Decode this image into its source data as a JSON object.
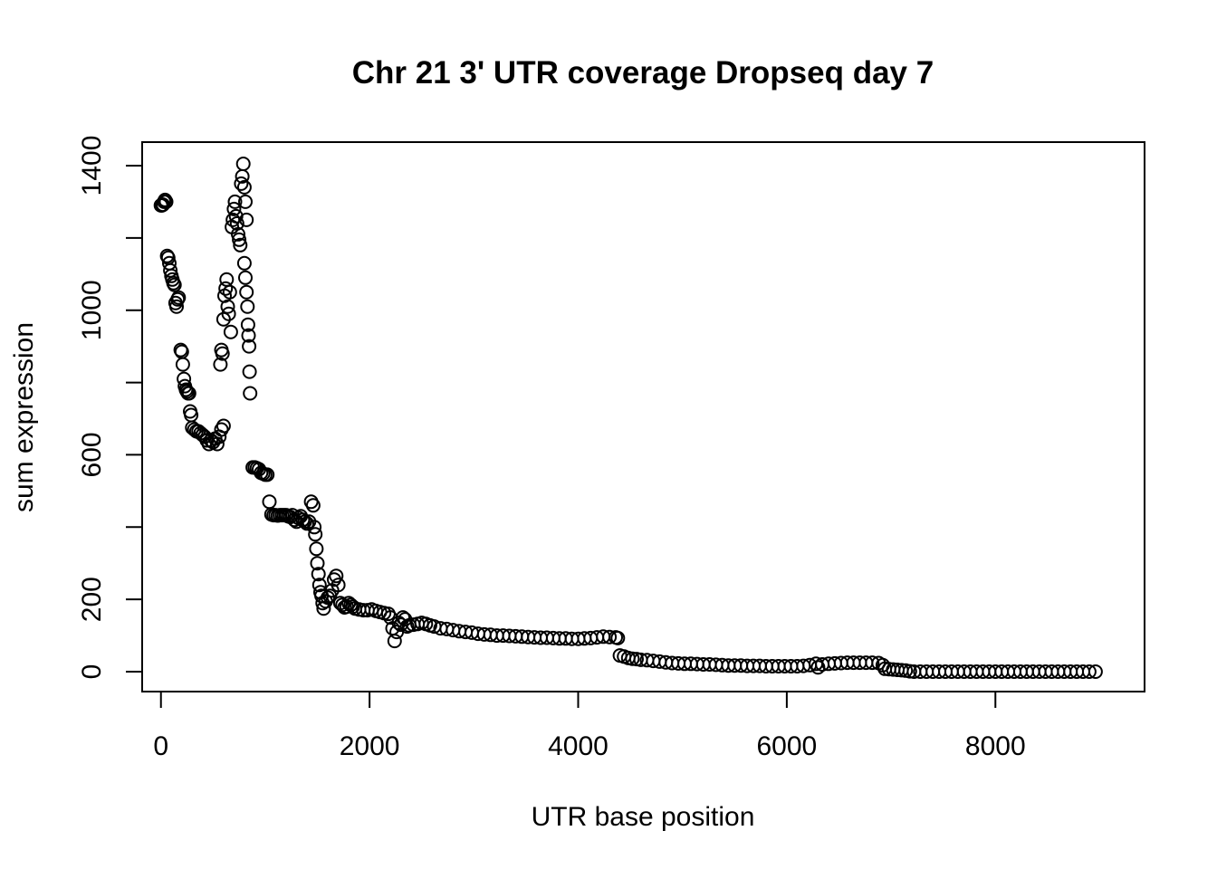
{
  "chart_data": {
    "type": "scatter",
    "title": "Chr 21 3' UTR coverage Dropseq day 7",
    "xlabel": "UTR base position",
    "ylabel": "sum expression",
    "xlim": [
      -180,
      9430
    ],
    "ylim": [
      -55,
      1465
    ],
    "x_ticks": [
      0,
      2000,
      4000,
      6000,
      8000
    ],
    "y_ticks": [
      0,
      200,
      400,
      600,
      800,
      1000,
      1200,
      1400
    ],
    "y_tick_labels": [
      "0",
      "200",
      "",
      "600",
      "",
      "1000",
      "",
      "1400"
    ],
    "x_tick_labels": [
      "0",
      "2000",
      "4000",
      "6000",
      "8000"
    ],
    "marker": "open-circle",
    "marker_color": "#000000",
    "grid": false,
    "legend": "none",
    "series": [
      {
        "points": [
          [
            0,
            1290
          ],
          [
            10,
            1290
          ],
          [
            20,
            1292
          ],
          [
            30,
            1300
          ],
          [
            40,
            1305
          ],
          [
            50,
            1300
          ],
          [
            60,
            1150
          ],
          [
            70,
            1145
          ],
          [
            80,
            1130
          ],
          [
            90,
            1110
          ],
          [
            100,
            1095
          ],
          [
            110,
            1085
          ],
          [
            120,
            1075
          ],
          [
            130,
            1070
          ],
          [
            140,
            1020
          ],
          [
            150,
            1010
          ],
          [
            160,
            1030
          ],
          [
            170,
            1035
          ],
          [
            190,
            890
          ],
          [
            200,
            885
          ],
          [
            210,
            850
          ],
          [
            220,
            810
          ],
          [
            230,
            790
          ],
          [
            240,
            780
          ],
          [
            250,
            775
          ],
          [
            260,
            770
          ],
          [
            270,
            770
          ],
          [
            280,
            720
          ],
          [
            290,
            710
          ],
          [
            300,
            675
          ],
          [
            320,
            670
          ],
          [
            340,
            665
          ],
          [
            360,
            665
          ],
          [
            380,
            660
          ],
          [
            400,
            655
          ],
          [
            420,
            650
          ],
          [
            440,
            640
          ],
          [
            460,
            630
          ],
          [
            480,
            640
          ],
          [
            500,
            635
          ],
          [
            520,
            645
          ],
          [
            540,
            630
          ],
          [
            560,
            650
          ],
          [
            580,
            670
          ],
          [
            600,
            680
          ],
          [
            570,
            850
          ],
          [
            580,
            890
          ],
          [
            590,
            880
          ],
          [
            600,
            975
          ],
          [
            610,
            1040
          ],
          [
            620,
            1060
          ],
          [
            630,
            1085
          ],
          [
            640,
            1010
          ],
          [
            650,
            990
          ],
          [
            660,
            1050
          ],
          [
            670,
            940
          ],
          [
            680,
            1230
          ],
          [
            690,
            1250
          ],
          [
            700,
            1280
          ],
          [
            710,
            1300
          ],
          [
            720,
            1260
          ],
          [
            730,
            1240
          ],
          [
            740,
            1210
          ],
          [
            750,
            1195
          ],
          [
            760,
            1180
          ],
          [
            770,
            1350
          ],
          [
            780,
            1370
          ],
          [
            790,
            1405
          ],
          [
            800,
            1340
          ],
          [
            810,
            1300
          ],
          [
            820,
            1250
          ],
          [
            800,
            1130
          ],
          [
            810,
            1090
          ],
          [
            820,
            1050
          ],
          [
            830,
            1010
          ],
          [
            835,
            960
          ],
          [
            840,
            930
          ],
          [
            845,
            900
          ],
          [
            850,
            830
          ],
          [
            855,
            770
          ],
          [
            880,
            565
          ],
          [
            900,
            565
          ],
          [
            920,
            563
          ],
          [
            940,
            560
          ],
          [
            960,
            550
          ],
          [
            980,
            548
          ],
          [
            1000,
            545
          ],
          [
            1020,
            545
          ],
          [
            1040,
            470
          ],
          [
            1060,
            435
          ],
          [
            1080,
            433
          ],
          [
            1100,
            433
          ],
          [
            1120,
            432
          ],
          [
            1140,
            433
          ],
          [
            1160,
            433
          ],
          [
            1180,
            433
          ],
          [
            1200,
            433
          ],
          [
            1220,
            430
          ],
          [
            1240,
            428
          ],
          [
            1260,
            433
          ],
          [
            1280,
            420
          ],
          [
            1300,
            415
          ],
          [
            1320,
            425
          ],
          [
            1340,
            430
          ],
          [
            1360,
            420
          ],
          [
            1380,
            415
          ],
          [
            1400,
            410
          ],
          [
            1420,
            415
          ],
          [
            1440,
            470
          ],
          [
            1460,
            460
          ],
          [
            1470,
            400
          ],
          [
            1480,
            380
          ],
          [
            1490,
            340
          ],
          [
            1500,
            300
          ],
          [
            1510,
            270
          ],
          [
            1520,
            240
          ],
          [
            1530,
            220
          ],
          [
            1540,
            210
          ],
          [
            1550,
            190
          ],
          [
            1560,
            175
          ],
          [
            1580,
            195
          ],
          [
            1600,
            205
          ],
          [
            1620,
            210
          ],
          [
            1640,
            225
          ],
          [
            1660,
            255
          ],
          [
            1680,
            265
          ],
          [
            1700,
            240
          ],
          [
            1720,
            190
          ],
          [
            1740,
            185
          ],
          [
            1760,
            178
          ],
          [
            1780,
            180
          ],
          [
            1800,
            190
          ],
          [
            1820,
            185
          ],
          [
            1840,
            180
          ],
          [
            1860,
            175
          ],
          [
            1900,
            172
          ],
          [
            1940,
            170
          ],
          [
            1980,
            170
          ],
          [
            2020,
            172
          ],
          [
            2060,
            168
          ],
          [
            2100,
            165
          ],
          [
            2140,
            162
          ],
          [
            2180,
            160
          ],
          [
            2200,
            150
          ],
          [
            2220,
            120
          ],
          [
            2240,
            85
          ],
          [
            2260,
            110
          ],
          [
            2280,
            135
          ],
          [
            2300,
            130
          ],
          [
            2320,
            150
          ],
          [
            2340,
            145
          ],
          [
            2360,
            125
          ],
          [
            2380,
            128
          ],
          [
            2420,
            130
          ],
          [
            2460,
            132
          ],
          [
            2500,
            135
          ],
          [
            2540,
            132
          ],
          [
            2580,
            128
          ],
          [
            2620,
            125
          ],
          [
            2680,
            120
          ],
          [
            2740,
            118
          ],
          [
            2800,
            115
          ],
          [
            2860,
            112
          ],
          [
            2920,
            110
          ],
          [
            2980,
            108
          ],
          [
            3040,
            105
          ],
          [
            3100,
            103
          ],
          [
            3160,
            102
          ],
          [
            3220,
            100
          ],
          [
            3280,
            100
          ],
          [
            3340,
            99
          ],
          [
            3400,
            98
          ],
          [
            3460,
            97
          ],
          [
            3520,
            96
          ],
          [
            3580,
            95
          ],
          [
            3640,
            94
          ],
          [
            3700,
            94
          ],
          [
            3760,
            93
          ],
          [
            3820,
            92
          ],
          [
            3880,
            92
          ],
          [
            3940,
            91
          ],
          [
            4000,
            91
          ],
          [
            4060,
            92
          ],
          [
            4120,
            93
          ],
          [
            4180,
            95
          ],
          [
            4240,
            97
          ],
          [
            4300,
            96
          ],
          [
            4360,
            95
          ],
          [
            4380,
            93
          ],
          [
            4400,
            45
          ],
          [
            4440,
            42
          ],
          [
            4480,
            38
          ],
          [
            4520,
            36
          ],
          [
            4560,
            35
          ],
          [
            4600,
            33
          ],
          [
            4660,
            32
          ],
          [
            4720,
            30
          ],
          [
            4780,
            28
          ],
          [
            4840,
            26
          ],
          [
            4900,
            24
          ],
          [
            4960,
            23
          ],
          [
            5020,
            22
          ],
          [
            5080,
            22
          ],
          [
            5140,
            21
          ],
          [
            5200,
            20
          ],
          [
            5260,
            20
          ],
          [
            5320,
            19
          ],
          [
            5380,
            18
          ],
          [
            5440,
            17
          ],
          [
            5500,
            17
          ],
          [
            5560,
            17
          ],
          [
            5620,
            16
          ],
          [
            5680,
            16
          ],
          [
            5740,
            16
          ],
          [
            5800,
            15
          ],
          [
            5860,
            15
          ],
          [
            5920,
            15
          ],
          [
            5980,
            15
          ],
          [
            6040,
            15
          ],
          [
            6100,
            15
          ],
          [
            6160,
            16
          ],
          [
            6220,
            18
          ],
          [
            6280,
            22
          ],
          [
            6300,
            12
          ],
          [
            6340,
            20
          ],
          [
            6400,
            22
          ],
          [
            6460,
            23
          ],
          [
            6520,
            24
          ],
          [
            6580,
            25
          ],
          [
            6640,
            25
          ],
          [
            6700,
            25
          ],
          [
            6760,
            25
          ],
          [
            6820,
            25
          ],
          [
            6880,
            24
          ],
          [
            6920,
            18
          ],
          [
            6940,
            8
          ],
          [
            6980,
            7
          ],
          [
            7020,
            6
          ],
          [
            7060,
            5
          ],
          [
            7100,
            4
          ],
          [
            7140,
            3
          ],
          [
            7180,
            1
          ],
          [
            7220,
            0
          ],
          [
            7280,
            0
          ],
          [
            7340,
            0
          ],
          [
            7400,
            0
          ],
          [
            7460,
            0
          ],
          [
            7520,
            0
          ],
          [
            7580,
            0
          ],
          [
            7640,
            0
          ],
          [
            7700,
            0
          ],
          [
            7760,
            0
          ],
          [
            7820,
            0
          ],
          [
            7880,
            0
          ],
          [
            7940,
            0
          ],
          [
            8000,
            0
          ],
          [
            8060,
            0
          ],
          [
            8120,
            0
          ],
          [
            8180,
            0
          ],
          [
            8240,
            0
          ],
          [
            8300,
            0
          ],
          [
            8360,
            0
          ],
          [
            8420,
            0
          ],
          [
            8480,
            0
          ],
          [
            8540,
            0
          ],
          [
            8600,
            0
          ],
          [
            8660,
            0
          ],
          [
            8720,
            0
          ],
          [
            8780,
            0
          ],
          [
            8840,
            0
          ],
          [
            8900,
            0
          ],
          [
            8960,
            0
          ]
        ]
      }
    ]
  }
}
